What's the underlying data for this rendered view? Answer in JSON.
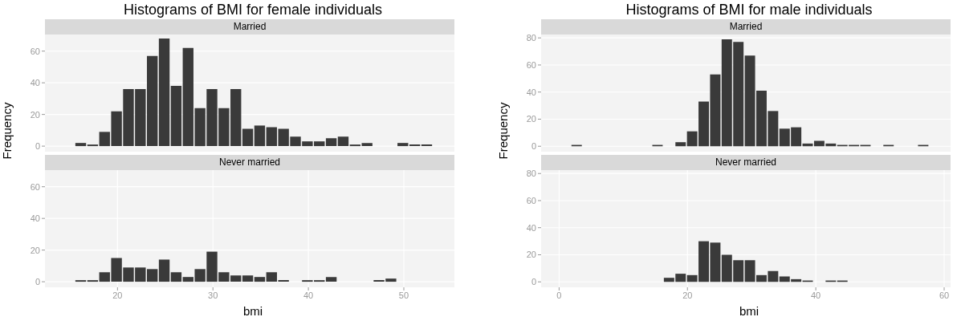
{
  "chart_data": [
    {
      "type": "histogram",
      "title": "Histograms of BMI for female individuals",
      "subtitle": "Married",
      "bins": [
        15.5,
        16.75,
        18,
        19.25,
        20.5,
        21.75,
        23,
        24.25,
        25.5,
        26.75,
        28,
        29.25,
        30.5,
        31.75,
        33,
        34.25,
        35.5,
        36.75,
        38,
        39.25,
        40.5,
        41.75,
        43,
        44.25,
        45.5,
        46.75,
        48,
        49.25,
        50.5,
        51.75,
        53
      ],
      "values": [
        2,
        1,
        9,
        22,
        36,
        36,
        57,
        68,
        38,
        62,
        24,
        36,
        24,
        36,
        11,
        13,
        12,
        11,
        6,
        3,
        3,
        5,
        6,
        1,
        2,
        0,
        0,
        2,
        1,
        1
      ],
      "color": "#3a3a3a",
      "xlim": [
        12.4,
        55.3
      ],
      "xticks": [
        20,
        30,
        40,
        50
      ],
      "ylim": [
        -3.5,
        70.5
      ],
      "yticks": [
        0,
        20,
        40,
        60
      ],
      "grid": true,
      "tick_labels": "y"
    },
    {
      "type": "histogram",
      "subtitle": "Never married",
      "xlabel": "bmi",
      "ylabel": "Frequency",
      "bins": [
        15.5,
        16.75,
        18,
        19.25,
        20.5,
        21.75,
        23,
        24.25,
        25.5,
        26.75,
        28,
        29.25,
        30.5,
        31.75,
        33,
        34.25,
        35.5,
        36.75,
        38,
        39.25,
        40.5,
        41.75,
        43,
        44.25,
        45.5,
        46.75,
        48,
        49.25,
        50.5,
        51.75,
        53
      ],
      "values": [
        1,
        1,
        6,
        15,
        9,
        9,
        8,
        14,
        6,
        3,
        8,
        19,
        6,
        4,
        4,
        3,
        6,
        1,
        0,
        1,
        1,
        3,
        0,
        0,
        0,
        1,
        2,
        0,
        0,
        0
      ],
      "color": "#3a3a3a",
      "xlim": [
        12.4,
        55.3
      ],
      "xticks": [
        20,
        30,
        40,
        50
      ],
      "ylim": [
        -3.5,
        70.5
      ],
      "yticks": [
        0,
        20,
        40,
        60
      ],
      "grid": true
    },
    {
      "type": "histogram",
      "title": "Histograms of BMI for male individuals",
      "subtitle": "Married",
      "bins": [
        1.8,
        3.6,
        5.4,
        7.2,
        9,
        10.8,
        12.6,
        14.4,
        16.2,
        18,
        19.8,
        21.6,
        23.4,
        25.2,
        27,
        28.8,
        30.6,
        32.4,
        34.2,
        36,
        37.8,
        39.6,
        41.4,
        43.2,
        45,
        46.8,
        48.6,
        50.4,
        52.2,
        54,
        55.8,
        57.6
      ],
      "values": [
        1,
        0,
        0,
        0,
        0,
        0,
        0,
        1,
        0,
        3,
        11,
        33,
        53,
        79,
        77,
        67,
        41,
        26,
        13,
        14,
        2,
        4,
        2,
        1,
        1,
        1,
        0,
        1,
        0,
        0,
        1
      ],
      "color": "#3a3a3a",
      "xlim": [
        -2.8,
        61
      ],
      "xticks": [
        0,
        20,
        40,
        60
      ],
      "ylim": [
        -4,
        82.5
      ],
      "yticks": [
        0,
        20,
        40,
        60,
        80
      ],
      "grid": true,
      "tick_labels": "y"
    },
    {
      "type": "histogram",
      "subtitle": "Never married",
      "xlabel": "bmi",
      "ylabel": "Frequency",
      "bins": [
        1.8,
        3.6,
        5.4,
        7.2,
        9,
        10.8,
        12.6,
        14.4,
        16.2,
        18,
        19.8,
        21.6,
        23.4,
        25.2,
        27,
        28.8,
        30.6,
        32.4,
        34.2,
        36,
        37.8,
        39.6,
        41.4,
        43.2,
        45,
        46.8,
        48.6,
        50.4,
        52.2,
        54,
        55.8,
        57.6
      ],
      "values": [
        0,
        0,
        0,
        0,
        0,
        0,
        0,
        0,
        3,
        6,
        5,
        30,
        29,
        20,
        16,
        16,
        5,
        8,
        4,
        2,
        1,
        0,
        1,
        1,
        0,
        0,
        0,
        0,
        0,
        0,
        0
      ],
      "color": "#3a3a3a",
      "xlim": [
        -2.8,
        61
      ],
      "xticks": [
        0,
        20,
        40,
        60
      ],
      "ylim": [
        -4,
        82.5
      ],
      "yticks": [
        0,
        20,
        40,
        60,
        80
      ],
      "grid": true
    }
  ]
}
